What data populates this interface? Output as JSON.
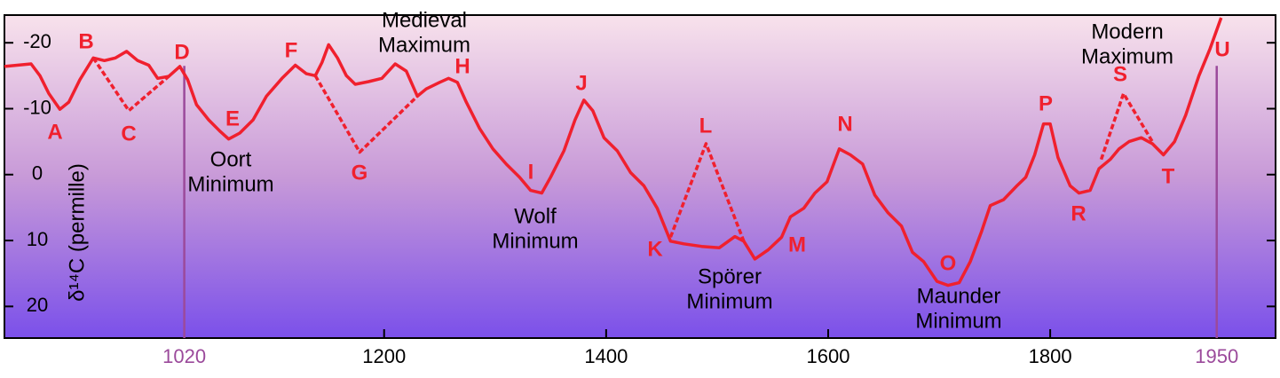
{
  "chart_data": {
    "type": "line",
    "y_label": "δ¹⁴C (permille)",
    "xlim": [
      858,
      2003
    ],
    "ylim": [
      -24.2,
      24.8
    ],
    "y_inverted": true,
    "xticks": [
      1200,
      1400,
      1600,
      1800
    ],
    "yticks": [
      -20,
      -10,
      0,
      10,
      20
    ],
    "markers": [
      1020,
      1950
    ],
    "marker_color": "#9b4a9b",
    "series": [
      {
        "color": "#f0202e",
        "x": [
          858,
          882,
          890,
          898,
          908,
          916,
          926,
          938,
          948,
          958,
          968,
          978,
          988,
          996,
          1006,
          1016,
          1023,
          1031,
          1042,
          1052,
          1060,
          1070,
          1082,
          1094,
          1108,
          1120,
          1130,
          1138,
          1144,
          1150,
          1158,
          1166,
          1174,
          1186,
          1198,
          1210,
          1220,
          1230,
          1238,
          1250,
          1258,
          1266,
          1274,
          1286,
          1298,
          1310,
          1322,
          1332,
          1342,
          1350,
          1362,
          1372,
          1380,
          1388,
          1398,
          1410,
          1422,
          1434,
          1446,
          1458,
          1470,
          1486,
          1502,
          1516,
          1524,
          1534,
          1546,
          1558,
          1566,
          1578,
          1588,
          1599,
          1610,
          1620,
          1631,
          1642,
          1654,
          1666,
          1676,
          1686,
          1698,
          1708,
          1718,
          1728,
          1738,
          1746,
          1758,
          1770,
          1778,
          1786,
          1794,
          1800,
          1807,
          1818,
          1826,
          1836,
          1844,
          1854,
          1862,
          1871,
          1882,
          1892,
          1902,
          1912,
          1922,
          1934,
          1944,
          1954
        ],
        "values": [
          -16.4,
          -16.8,
          -15,
          -12.3,
          -9.9,
          -11,
          -14.4,
          -17.7,
          -17.3,
          -17.7,
          -18.7,
          -17.3,
          -16.6,
          -14.6,
          -14.9,
          -16.4,
          -14.4,
          -10.6,
          -8.3,
          -6.6,
          -5.4,
          -6.3,
          -8.3,
          -11.9,
          -14.6,
          -16.6,
          -15.3,
          -15,
          -17,
          -19.7,
          -17.7,
          -15,
          -13.7,
          -14.1,
          -14.6,
          -16.8,
          -15.7,
          -11.9,
          -13,
          -14,
          -14.6,
          -14,
          -11,
          -7,
          -3.9,
          -1.6,
          0.4,
          2.4,
          2.8,
          0.4,
          -3.6,
          -8.3,
          -11.3,
          -9.7,
          -5.6,
          -3.6,
          -0.3,
          1.7,
          5.1,
          10.1,
          10.5,
          10.9,
          11.1,
          9.4,
          10.1,
          12.8,
          11.4,
          9.5,
          6.4,
          5.1,
          2.8,
          1.1,
          -3.9,
          -3,
          -1.6,
          3.1,
          5.8,
          7.8,
          11.8,
          13.2,
          16.2,
          16.8,
          16.4,
          13.2,
          8.7,
          4.7,
          3.8,
          1.7,
          0.4,
          -3,
          -7.7,
          -7.7,
          -2.6,
          1.7,
          2.8,
          2.4,
          -0.9,
          -2.3,
          -3.9,
          -5,
          -5.6,
          -4.7,
          -3,
          -5,
          -9,
          -15,
          -19.1,
          -23.8
        ]
      }
    ],
    "dashed": [
      {
        "x": [
          938,
          970,
          1006
        ],
        "values": [
          -17.7,
          -9.7,
          -14.9
        ]
      },
      {
        "x": [
          1138,
          1178,
          1230
        ],
        "values": [
          -15,
          -3.4,
          -11.9
        ]
      },
      {
        "x": [
          1458,
          1490,
          1524
        ],
        "values": [
          9.5,
          -4.7,
          10.1
        ]
      },
      {
        "x": [
          1846,
          1866,
          1892
        ],
        "values": [
          -2.3,
          -12.3,
          -5
        ]
      }
    ],
    "points": [
      "A",
      "B",
      "C",
      "D",
      "E",
      "F",
      "G",
      "H",
      "I",
      "J",
      "K",
      "L",
      "M",
      "N",
      "O",
      "P",
      "R",
      "S",
      "T",
      "U"
    ],
    "annotations": [
      [
        "Medieval",
        "Maximum"
      ],
      [
        "Oort",
        "Minimum"
      ],
      [
        "Wolf",
        "Minimum"
      ],
      [
        "Spörer",
        "Minimum"
      ],
      [
        "Maunder",
        "Minimum"
      ],
      [
        "Modern",
        "Maximum"
      ]
    ]
  }
}
